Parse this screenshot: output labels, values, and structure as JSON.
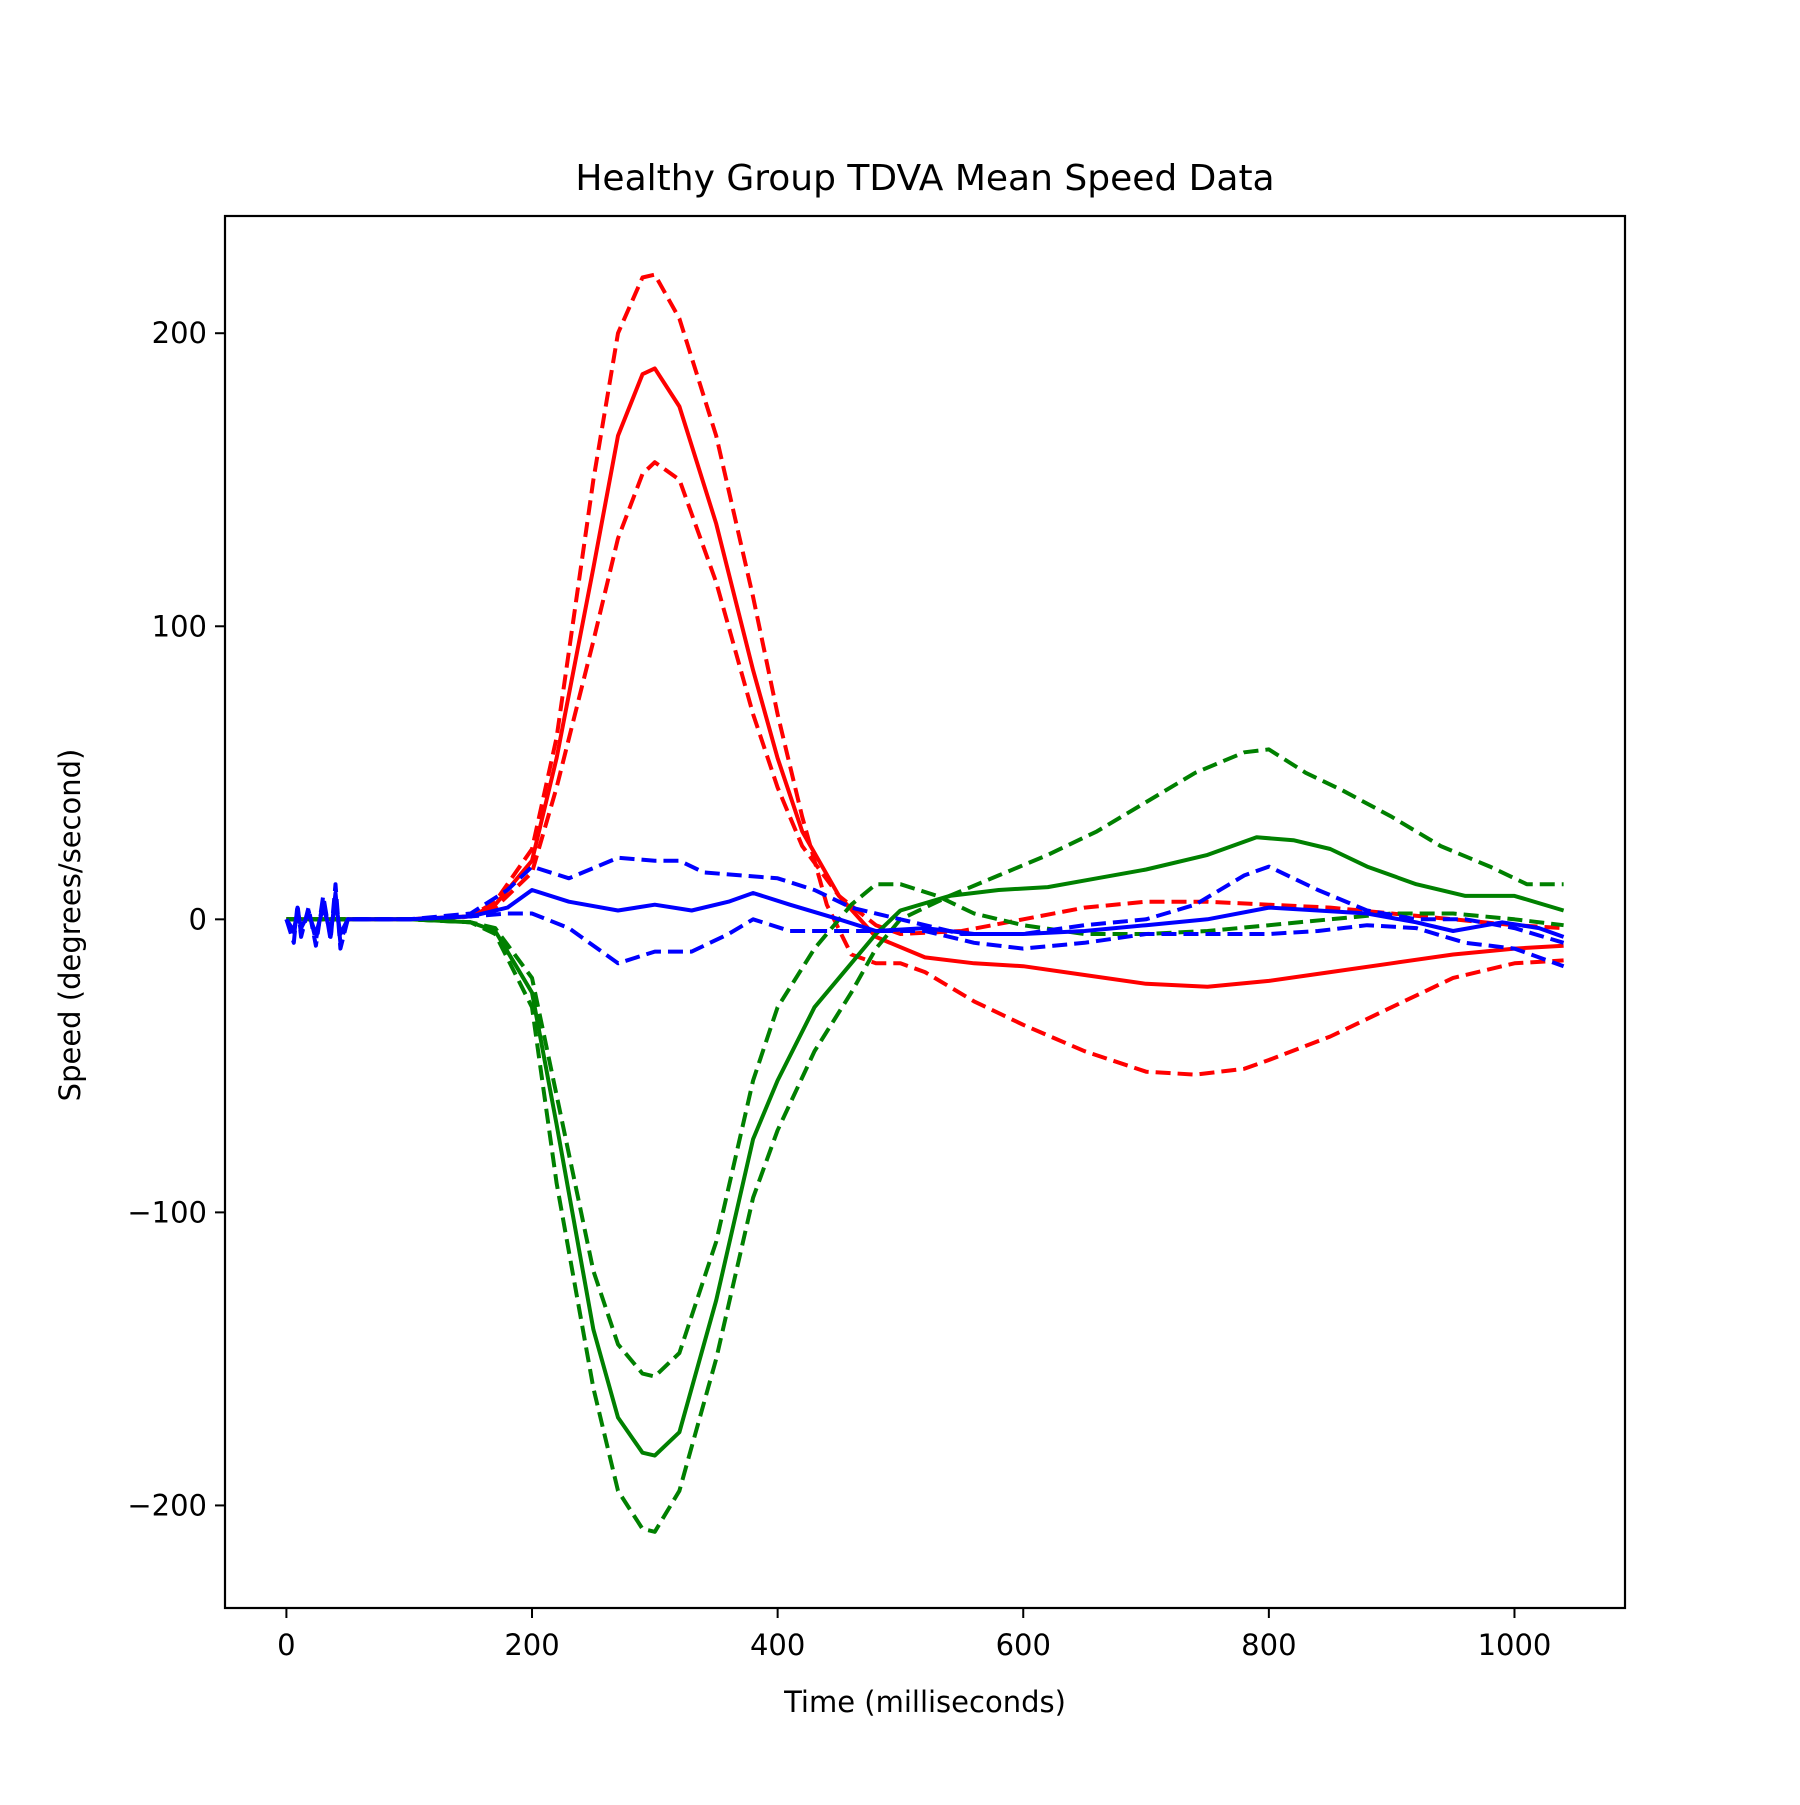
{
  "chart_data": {
    "type": "line",
    "title": "Healthy Group TDVA Mean Speed Data",
    "xlabel": "Time (milliseconds)",
    "ylabel": "Speed (degrees/second)",
    "xlim": [
      -50,
      1090
    ],
    "ylim": [
      -235,
      240
    ],
    "x_ticks": [
      0,
      200,
      400,
      600,
      800,
      1000
    ],
    "y_ticks": [
      -200,
      -100,
      0,
      100,
      200
    ],
    "y_tick_labels": [
      "−200",
      "−100",
      "0",
      "100",
      "200"
    ],
    "grid": false,
    "legend": "none",
    "series": [
      {
        "color": "#ff0000",
        "style": "solid",
        "x": [
          0,
          100,
          150,
          170,
          200,
          220,
          250,
          270,
          290,
          300,
          320,
          350,
          380,
          400,
          420,
          450,
          480,
          520,
          560,
          600,
          650,
          700,
          750,
          800,
          850,
          900,
          950,
          1000,
          1040
        ],
        "y": [
          0,
          0,
          1,
          5,
          20,
          55,
          120,
          165,
          186,
          188,
          175,
          135,
          85,
          55,
          30,
          8,
          -6,
          -13,
          -15,
          -16,
          -19,
          -22,
          -23,
          -21,
          -18,
          -15,
          -12,
          -10,
          -9
        ]
      },
      {
        "color": "#ff0000",
        "style": "dashed",
        "x": [
          0,
          100,
          150,
          170,
          200,
          220,
          250,
          270,
          290,
          300,
          320,
          350,
          380,
          400,
          420,
          440,
          460,
          480,
          500,
          520,
          560,
          600,
          650,
          700,
          740,
          780,
          800,
          850,
          900,
          950,
          1000,
          1040
        ],
        "y": [
          0,
          0,
          1,
          6,
          24,
          62,
          150,
          200,
          219,
          220,
          205,
          165,
          110,
          70,
          35,
          5,
          -12,
          -15,
          -15,
          -18,
          -28,
          -36,
          -45,
          -52,
          -53,
          -51,
          -48,
          -40,
          -30,
          -20,
          -15,
          -14
        ]
      },
      {
        "color": "#ff0000",
        "style": "dashed",
        "x": [
          0,
          100,
          150,
          170,
          200,
          220,
          250,
          270,
          290,
          300,
          320,
          350,
          380,
          400,
          420,
          450,
          480,
          500,
          550,
          600,
          650,
          700,
          750,
          800,
          850,
          900,
          950,
          1000,
          1040
        ],
        "y": [
          0,
          0,
          1,
          4,
          16,
          45,
          95,
          130,
          152,
          156,
          150,
          115,
          70,
          45,
          25,
          8,
          -2,
          -5,
          -4,
          0,
          4,
          6,
          6,
          5,
          4,
          2,
          0,
          -2,
          -3
        ]
      },
      {
        "color": "#008000",
        "style": "solid",
        "x": [
          0,
          100,
          150,
          170,
          200,
          220,
          250,
          270,
          290,
          300,
          320,
          350,
          380,
          400,
          430,
          460,
          480,
          500,
          540,
          580,
          620,
          660,
          700,
          750,
          790,
          820,
          850,
          880,
          920,
          960,
          1000,
          1040
        ],
        "y": [
          0,
          0,
          -1,
          -4,
          -25,
          -70,
          -140,
          -170,
          -182,
          -183,
          -175,
          -130,
          -75,
          -55,
          -30,
          -15,
          -5,
          3,
          8,
          10,
          11,
          14,
          17,
          22,
          28,
          27,
          24,
          18,
          12,
          8,
          8,
          3
        ]
      },
      {
        "color": "#008000",
        "style": "dashed",
        "x": [
          0,
          100,
          150,
          170,
          200,
          220,
          250,
          270,
          290,
          300,
          320,
          350,
          380,
          400,
          430,
          460,
          480,
          500,
          540,
          580,
          620,
          660,
          700,
          740,
          780,
          800,
          830,
          860,
          900,
          940,
          980,
          1010,
          1040
        ],
        "y": [
          0,
          0,
          -1,
          -5,
          -30,
          -90,
          -160,
          -195,
          -208,
          -209,
          -195,
          -150,
          -95,
          -72,
          -45,
          -25,
          -10,
          0,
          8,
          15,
          22,
          30,
          40,
          50,
          57,
          58,
          50,
          44,
          35,
          25,
          18,
          12,
          12
        ]
      },
      {
        "color": "#008000",
        "style": "dashed",
        "x": [
          0,
          100,
          150,
          170,
          200,
          220,
          250,
          270,
          290,
          300,
          320,
          350,
          380,
          400,
          430,
          460,
          480,
          500,
          530,
          560,
          600,
          650,
          700,
          750,
          800,
          850,
          900,
          950,
          1000,
          1040
        ],
        "y": [
          0,
          0,
          -1,
          -3,
          -20,
          -60,
          -120,
          -145,
          -155,
          -156,
          -148,
          -110,
          -55,
          -30,
          -10,
          5,
          12,
          12,
          8,
          2,
          -2,
          -5,
          -5,
          -4,
          -2,
          0,
          2,
          2,
          0,
          -2
        ]
      },
      {
        "color": "#0000ff",
        "style": "solid",
        "x": [
          0,
          6,
          9,
          12,
          18,
          24,
          30,
          36,
          40,
          44,
          50,
          100,
          150,
          180,
          200,
          230,
          270,
          300,
          330,
          360,
          380,
          410,
          450,
          480,
          520,
          560,
          600,
          650,
          700,
          750,
          800,
          840,
          880,
          920,
          950,
          990,
          1020,
          1040
        ],
        "y": [
          0,
          -4,
          3,
          -3,
          2,
          -5,
          4,
          -4,
          6,
          -5,
          0,
          0,
          1,
          4,
          10,
          6,
          3,
          5,
          3,
          6,
          9,
          5,
          0,
          -4,
          -3,
          -5,
          -5,
          -4,
          -2,
          0,
          4,
          3,
          2,
          -1,
          -4,
          -1,
          -3,
          -6
        ]
      },
      {
        "color": "#0000ff",
        "style": "dashed",
        "x": [
          0,
          6,
          9,
          12,
          18,
          24,
          30,
          36,
          40,
          44,
          50,
          100,
          150,
          180,
          200,
          230,
          270,
          300,
          320,
          340,
          370,
          400,
          430,
          460,
          500,
          550,
          600,
          650,
          700,
          740,
          780,
          800,
          840,
          880,
          920,
          960,
          1000,
          1040
        ],
        "y": [
          0,
          -8,
          5,
          -6,
          4,
          -9,
          8,
          -7,
          12,
          -10,
          0,
          0,
          2,
          10,
          18,
          14,
          21,
          20,
          20,
          16,
          15,
          14,
          10,
          4,
          0,
          -5,
          -5,
          -2,
          0,
          5,
          15,
          18,
          10,
          3,
          0,
          0,
          -3,
          -8
        ]
      },
      {
        "color": "#0000ff",
        "style": "dashed",
        "x": [
          0,
          6,
          9,
          12,
          18,
          24,
          30,
          36,
          40,
          44,
          50,
          100,
          150,
          180,
          200,
          230,
          270,
          300,
          330,
          360,
          380,
          410,
          450,
          480,
          520,
          560,
          600,
          650,
          700,
          750,
          800,
          840,
          880,
          920,
          960,
          1000,
          1040
        ],
        "y": [
          0,
          -6,
          4,
          -5,
          3,
          -7,
          6,
          -6,
          9,
          -8,
          0,
          0,
          1,
          2,
          2,
          -3,
          -15,
          -11,
          -11,
          -5,
          0,
          -4,
          -4,
          -4,
          -4,
          -8,
          -10,
          -8,
          -5,
          -5,
          -5,
          -4,
          -2,
          -3,
          -8,
          -10,
          -16
        ]
      }
    ]
  }
}
